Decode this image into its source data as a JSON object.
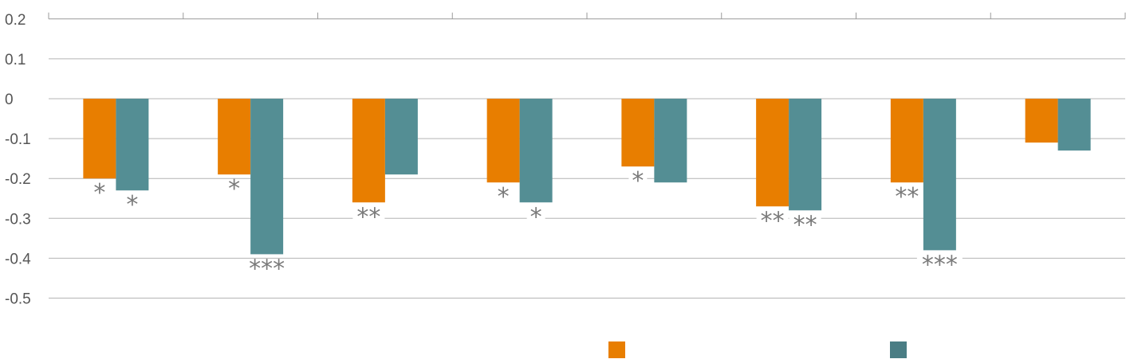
{
  "chart_data": {
    "type": "bar",
    "categories": [
      "",
      "",
      "",
      "",
      "",
      "",
      "",
      ""
    ],
    "series": [
      {
        "color": "#E87E00",
        "values": [
          -0.2,
          -0.19,
          -0.26,
          -0.21,
          -0.17,
          -0.27,
          -0.21,
          -0.11
        ],
        "significance": [
          "*",
          "*",
          "**",
          "*",
          "*",
          "**",
          "**",
          ""
        ]
      },
      {
        "color": "#548E94",
        "values": [
          -0.23,
          -0.39,
          -0.19,
          -0.26,
          -0.21,
          -0.28,
          -0.38,
          -0.13
        ],
        "significance": [
          "*",
          "***",
          "",
          "*",
          "",
          "**",
          "***",
          ""
        ]
      }
    ],
    "ylim": [
      -0.5,
      0.2
    ],
    "yticks": [
      "0.2",
      "0.1",
      "0",
      "-0.1",
      "-0.2",
      "-0.3",
      "-0.4",
      "-0.5"
    ],
    "ytick_values": [
      0.2,
      0.1,
      0,
      -0.1,
      -0.2,
      -0.3,
      -0.4,
      -0.5
    ],
    "grid": true,
    "legend": "bottom"
  }
}
